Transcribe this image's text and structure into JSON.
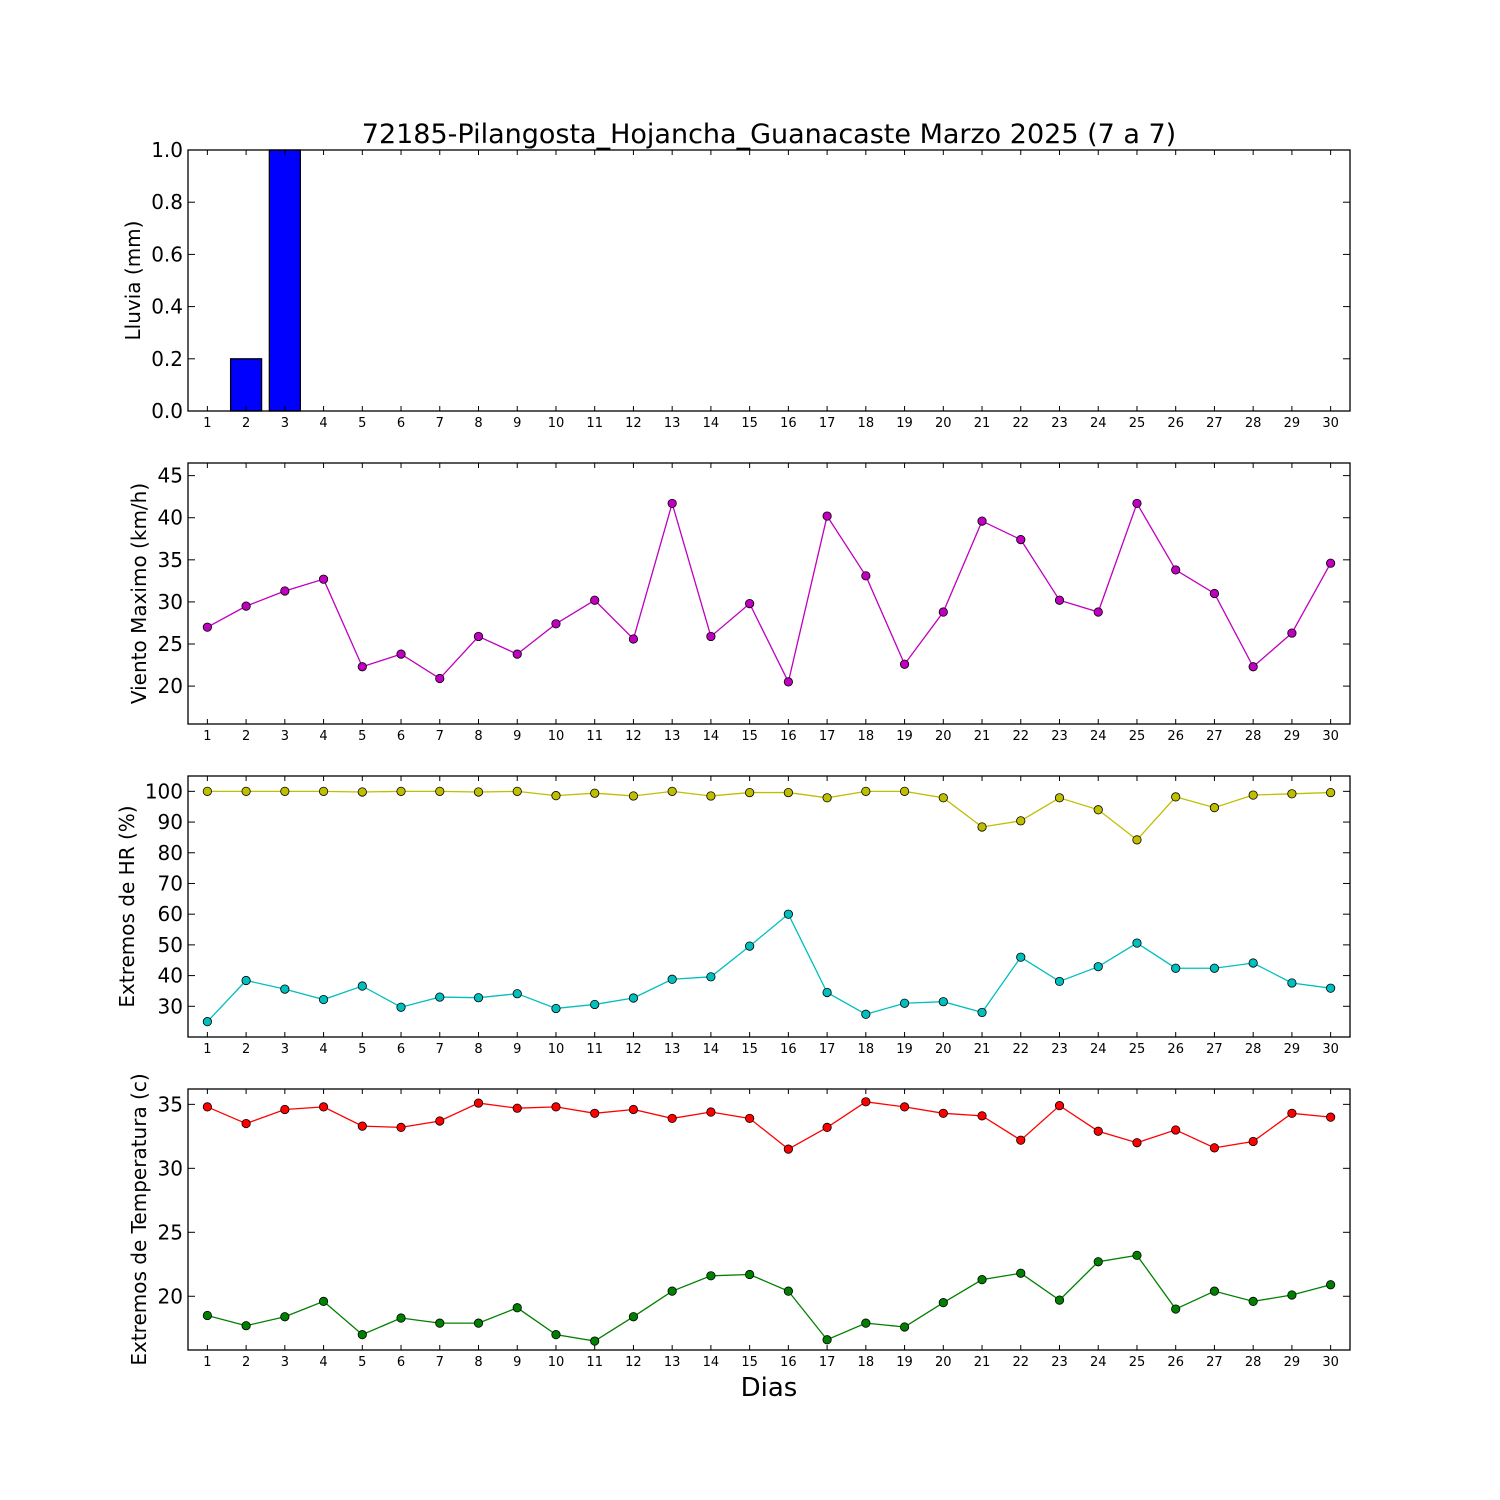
{
  "chart_data": [
    {
      "type": "bar",
      "title": "72185-Pilangosta_Hojancha_Guanacaste Marzo 2025  (7 a 7)",
      "ylabel": "Lluvia (mm)",
      "xlabel": "",
      "ylim": [
        0,
        1.0
      ],
      "yticks": [
        "0.0",
        "0.2",
        "0.4",
        "0.6",
        "0.8",
        "1.0"
      ],
      "x": [
        1,
        2,
        3,
        4,
        5,
        6,
        7,
        8,
        9,
        10,
        11,
        12,
        13,
        14,
        15,
        16,
        17,
        18,
        19,
        20,
        21,
        22,
        23,
        24,
        25,
        26,
        27,
        28,
        29,
        30
      ],
      "series": [
        {
          "color": "#0000ff",
          "values": [
            0,
            0.2,
            1.0,
            0,
            0,
            0,
            0,
            0,
            0,
            0,
            0,
            0,
            0,
            0,
            0,
            0,
            0,
            0,
            0,
            0,
            0,
            0,
            0,
            0,
            0,
            0,
            0,
            0,
            0,
            0
          ]
        }
      ]
    },
    {
      "type": "line",
      "ylabel": "Viento Maximo (km/h)",
      "xlabel": "",
      "ylim": [
        15.5,
        46.5
      ],
      "yticks": [
        "20",
        "25",
        "30",
        "35",
        "40",
        "45"
      ],
      "x": [
        1,
        2,
        3,
        4,
        5,
        6,
        7,
        8,
        9,
        10,
        11,
        12,
        13,
        14,
        15,
        16,
        17,
        18,
        19,
        20,
        21,
        22,
        23,
        24,
        25,
        26,
        27,
        28,
        29,
        30
      ],
      "series": [
        {
          "color": "#bf00bf",
          "values": [
            27.0,
            29.5,
            31.3,
            32.7,
            22.3,
            23.8,
            20.9,
            25.9,
            23.8,
            27.4,
            30.2,
            25.6,
            41.7,
            25.9,
            29.8,
            20.5,
            40.2,
            33.1,
            22.6,
            28.8,
            39.6,
            37.4,
            30.2,
            28.8,
            41.7,
            33.8,
            31.0,
            22.3,
            26.3,
            34.6
          ]
        }
      ]
    },
    {
      "type": "line",
      "ylabel": "Extremos de HR (%)",
      "xlabel": "",
      "ylim": [
        20,
        105
      ],
      "yticks": [
        "30",
        "40",
        "50",
        "60",
        "70",
        "80",
        "90",
        "100"
      ],
      "x": [
        1,
        2,
        3,
        4,
        5,
        6,
        7,
        8,
        9,
        10,
        11,
        12,
        13,
        14,
        15,
        16,
        17,
        18,
        19,
        20,
        21,
        22,
        23,
        24,
        25,
        26,
        27,
        28,
        29,
        30
      ],
      "series": [
        {
          "color": "#bfbf00",
          "values": [
            100,
            100,
            100,
            100,
            99.8,
            100,
            100,
            99.8,
            100,
            98.6,
            99.4,
            98.5,
            100,
            98.5,
            99.6,
            99.6,
            97.9,
            100,
            100,
            97.9,
            88.4,
            90.4,
            97.9,
            94.0,
            84.2,
            98.2,
            94.7,
            98.8,
            99.2,
            99.6
          ]
        },
        {
          "color": "#00bfbf",
          "values": [
            25.0,
            38.4,
            35.6,
            32.2,
            36.6,
            29.7,
            33.0,
            32.8,
            34.1,
            29.3,
            30.6,
            32.7,
            38.8,
            39.6,
            49.6,
            60.0,
            34.5,
            27.4,
            31.0,
            31.5,
            28.0,
            46.0,
            38.1,
            42.9,
            50.6,
            42.4,
            42.4,
            44.1,
            37.6,
            35.9
          ]
        }
      ]
    },
    {
      "type": "line",
      "ylabel": "Extremos de Temperatura (c)",
      "xlabel": "Dias",
      "ylim": [
        15.8,
        36.2
      ],
      "yticks": [
        "20",
        "25",
        "30",
        "35"
      ],
      "x": [
        1,
        2,
        3,
        4,
        5,
        6,
        7,
        8,
        9,
        10,
        11,
        12,
        13,
        14,
        15,
        16,
        17,
        18,
        19,
        20,
        21,
        22,
        23,
        24,
        25,
        26,
        27,
        28,
        29,
        30
      ],
      "series": [
        {
          "color": "#ff0000",
          "values": [
            34.8,
            33.5,
            34.6,
            34.8,
            33.3,
            33.2,
            33.7,
            35.1,
            34.7,
            34.8,
            34.3,
            34.6,
            33.9,
            34.4,
            33.9,
            31.5,
            33.2,
            35.2,
            34.8,
            34.3,
            34.1,
            32.2,
            34.9,
            32.9,
            32.0,
            33.0,
            31.6,
            32.1,
            34.3,
            34.0
          ]
        },
        {
          "color": "#008000",
          "values": [
            18.5,
            17.7,
            18.4,
            19.6,
            17.0,
            18.3,
            17.9,
            17.9,
            19.1,
            17.0,
            16.5,
            18.4,
            20.4,
            21.6,
            21.7,
            20.4,
            16.6,
            17.9,
            17.6,
            19.5,
            21.3,
            21.8,
            19.7,
            22.7,
            23.2,
            19.0,
            20.4,
            19.6,
            20.1,
            20.9
          ]
        }
      ]
    }
  ]
}
